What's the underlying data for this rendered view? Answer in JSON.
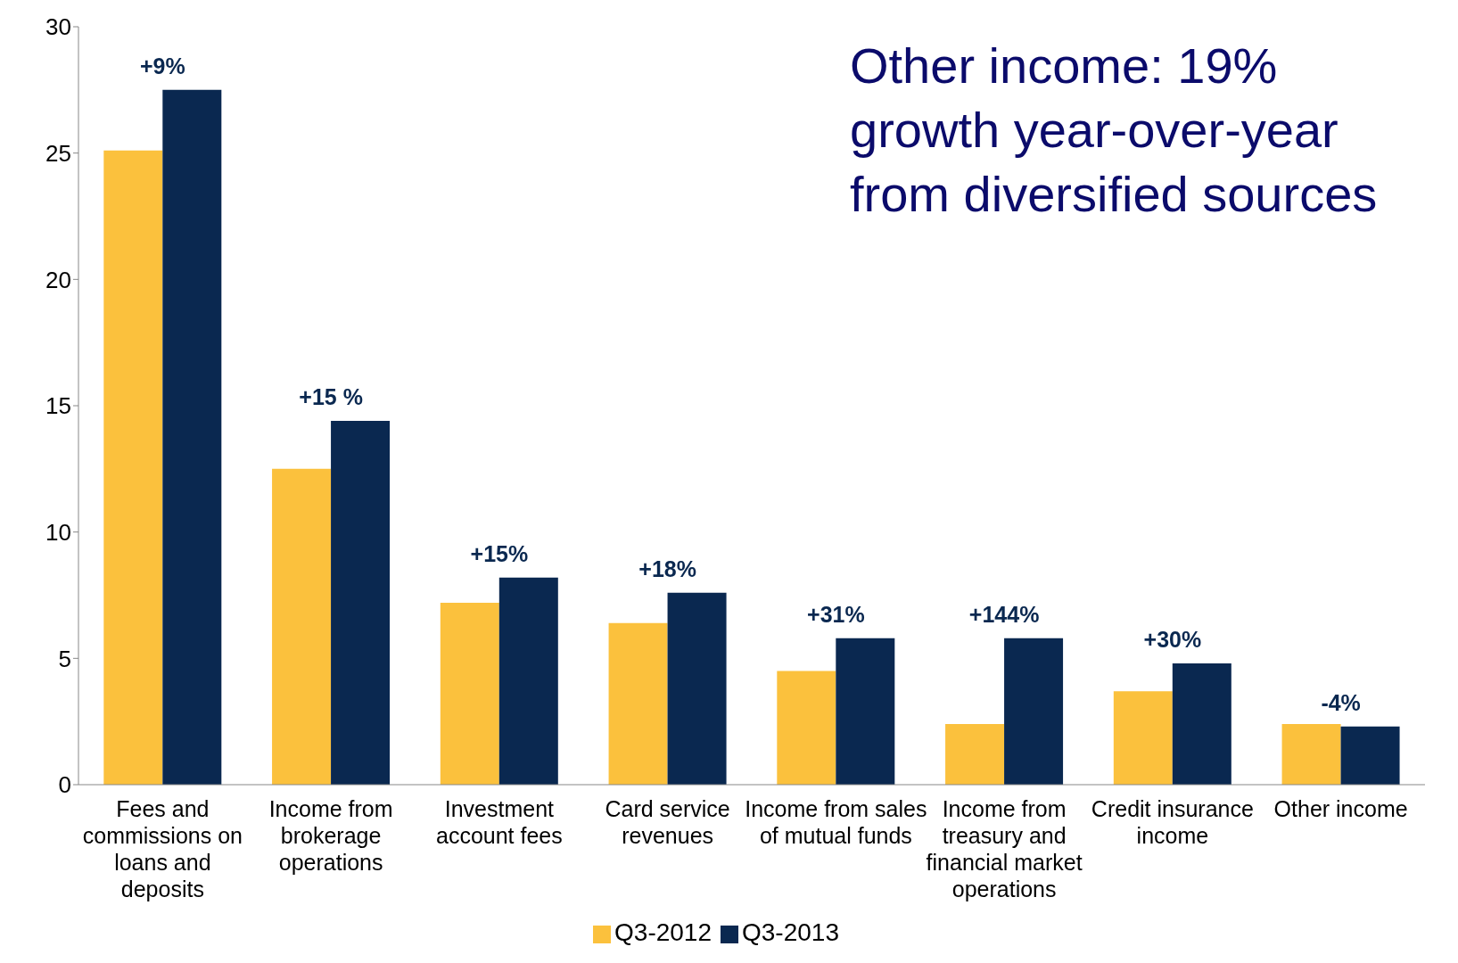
{
  "chart_data": {
    "type": "bar",
    "title": "Other income: 19% growth year-over-year from diversified sources",
    "categories": [
      "Fees and commissions on loans and deposits",
      "Income from brokerage operations",
      "Investment account fees",
      "Card service revenues",
      "Income from sales of mutual funds",
      "Income from treasury and financial market operations",
      "Credit insurance income",
      "Other income"
    ],
    "series": [
      {
        "name": "Q3-2012",
        "color": "#fbc13d",
        "values": [
          25.1,
          12.5,
          7.2,
          6.4,
          4.5,
          2.4,
          3.7,
          2.4
        ]
      },
      {
        "name": "Q3-2013",
        "color": "#0a2850",
        "values": [
          27.5,
          14.4,
          8.2,
          7.6,
          5.8,
          5.8,
          4.8,
          2.3
        ]
      }
    ],
    "ylim": [
      0,
      30
    ],
    "yticks": [
      0,
      5,
      10,
      15,
      20,
      25,
      30
    ],
    "grid": false,
    "legend": "bottom",
    "annotations": [
      {
        "text": "+9%",
        "x": "Fees and commissions on loans and deposits",
        "y": 27.5
      },
      {
        "text": "+15 %",
        "x": "Income from brokerage operations",
        "y": 14.4
      },
      {
        "text": "+15%",
        "x": "Investment account fees",
        "y": 8.2
      },
      {
        "text": "+18%",
        "x": "Card service revenues",
        "y": 7.6
      },
      {
        "text": "+31%",
        "x": "Income from sales of mutual funds",
        "y": 5.8
      },
      {
        "text": "+144%",
        "x": "Income from treasury and financial market operations",
        "y": 5.8
      },
      {
        "text": "+30%",
        "x": "Credit insurance income",
        "y": 4.8
      },
      {
        "text": "-4%",
        "x": "Other income",
        "y": 2.3
      }
    ]
  }
}
